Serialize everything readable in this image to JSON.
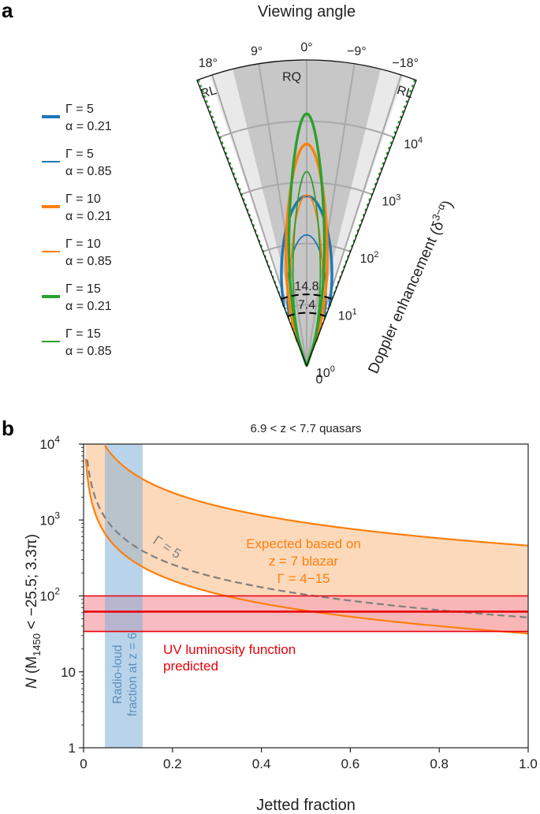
{
  "chart_data": [
    {
      "panel": "a",
      "type": "polar",
      "title": "Viewing angle",
      "angle_ticks": [
        "18°",
        "9°",
        "0°",
        "−9°",
        "−18°"
      ],
      "angle_ticks_deg": [
        18,
        9,
        0,
        -9,
        -18
      ],
      "angle_range_deg": [
        -21,
        21
      ],
      "radial_label": "Doppler enhancement (δ",
      "radial_label_sup": "3−α",
      "radial_label_close": ")",
      "radial_scale": "log",
      "radial_range": [
        1,
        100000
      ],
      "radial_ticks": [
        {
          "value": 1,
          "base": "10",
          "exp": "0"
        },
        {
          "value": 10,
          "base": "10",
          "exp": "1"
        },
        {
          "value": 100,
          "base": "10",
          "exp": "2"
        },
        {
          "value": 1000,
          "base": "10",
          "exp": "3"
        },
        {
          "value": 10000,
          "base": "10",
          "exp": "4"
        }
      ],
      "origin_label": "0",
      "regions": {
        "rq_label": "RQ",
        "rl_label": "RL",
        "rl_half_angle_deg": [
          14,
          18.5
        ],
        "rq_color": "#c7c7c7",
        "rl_color": "#e9e9e9"
      },
      "threshold_arcs": [
        {
          "label": "14.8",
          "value": 14.8
        },
        {
          "label": "7.4",
          "value": 7.4
        }
      ],
      "legend": [
        {
          "gamma_text": "Γ = 5",
          "alpha_text": "α = 0.21",
          "gamma": 5,
          "alpha": 0.21,
          "color": "#1f77b4",
          "thick": true
        },
        {
          "gamma_text": "Γ = 5",
          "alpha_text": "α = 0.85",
          "gamma": 5,
          "alpha": 0.85,
          "color": "#1f77b4",
          "thick": false
        },
        {
          "gamma_text": "Γ = 10",
          "alpha_text": "α = 0.21",
          "gamma": 10,
          "alpha": 0.21,
          "color": "#ff7f0e",
          "thick": true
        },
        {
          "gamma_text": "Γ = 10",
          "alpha_text": "α = 0.85",
          "gamma": 10,
          "alpha": 0.85,
          "color": "#ff7f0e",
          "thick": false
        },
        {
          "gamma_text": "Γ = 15",
          "alpha_text": "α = 0.21",
          "gamma": 15,
          "alpha": 0.21,
          "color": "#2ca02c",
          "thick": true
        },
        {
          "gamma_text": "Γ = 15",
          "alpha_text": "α = 0.85",
          "gamma": 15,
          "alpha": 0.85,
          "color": "#2ca02c",
          "thick": false
        }
      ]
    },
    {
      "panel": "b",
      "type": "line",
      "title": "6.9 < z < 7.7 quasars",
      "xlabel": "Jetted fraction",
      "ylabel": "N (M1450 < −25.5; 3.3π)",
      "ylabel_parts": [
        "N",
        " (M",
        "1450",
        " < −25.5; 3.3π)"
      ],
      "xlim": [
        0,
        1.0
      ],
      "ylim": [
        1,
        10000
      ],
      "yscale": "log",
      "xticks": [
        {
          "v": 0,
          "t": "0"
        },
        {
          "v": 0.2,
          "t": "0.2"
        },
        {
          "v": 0.4,
          "t": "0.4"
        },
        {
          "v": 0.6,
          "t": "0.6"
        },
        {
          "v": 0.8,
          "t": "0.8"
        },
        {
          "v": 1.0,
          "t": "1.0"
        }
      ],
      "yticks": [
        {
          "v": 1,
          "t": "1"
        },
        {
          "v": 10,
          "t": "10"
        },
        {
          "v": 100,
          "base": "10",
          "exp": "2"
        },
        {
          "v": 1000,
          "base": "10",
          "exp": "3"
        },
        {
          "v": 10000,
          "base": "10",
          "exp": "4"
        }
      ],
      "blazar_band": {
        "label_lines": [
          "Expected based on",
          "z = 7 blazar",
          "Γ = 4−15"
        ],
        "upper_coef": 460,
        "lower_coef": 32,
        "color": "#ff7f0e",
        "fill": "#fdd9bb"
      },
      "gamma5_line": {
        "label": "Γ = 5",
        "coef": 52,
        "color": "#808080"
      },
      "uv_band": {
        "label_lines": [
          "UV luminosity function",
          "predicted"
        ],
        "center": 62,
        "low": 34,
        "high": 100,
        "color": "#e8000b",
        "fill": "#f7b0b5"
      },
      "radio_loud_band": {
        "label_lines": [
          "Radio-loud",
          "fraction at z = 6"
        ],
        "x": [
          0.048,
          0.133
        ],
        "color": "#7fb0d8"
      }
    }
  ]
}
